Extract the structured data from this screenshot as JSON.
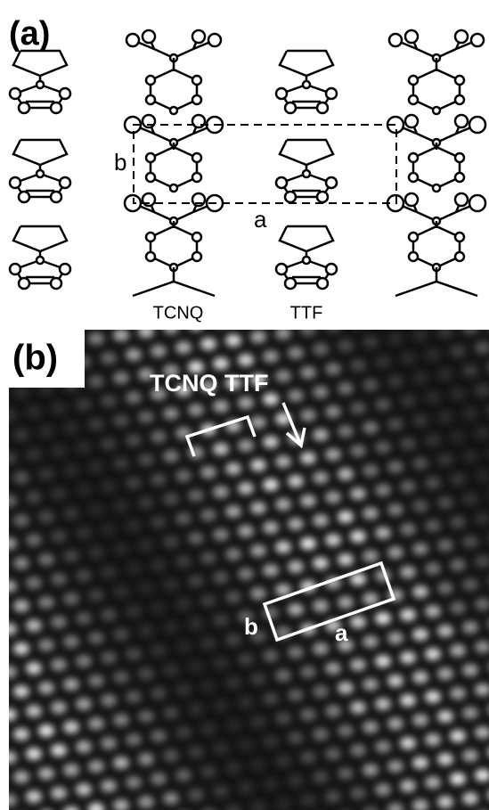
{
  "panel_a": {
    "label": "(a)",
    "lattice_labels": {
      "b": "b",
      "a": "a"
    },
    "molecule_labels": [
      "TCNQ",
      "TTF"
    ]
  },
  "panel_b": {
    "label": "(b)",
    "annotation": "TCNQ TTF",
    "lattice_labels": {
      "b": "b",
      "a": "a"
    }
  }
}
